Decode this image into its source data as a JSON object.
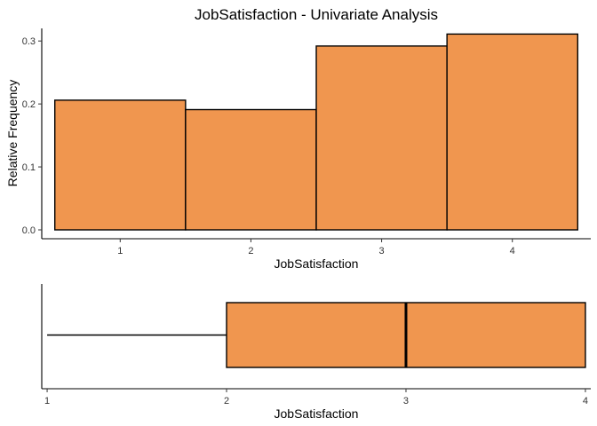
{
  "chart_data": [
    {
      "type": "bar",
      "title": "JobSatisfaction - Univariate Analysis",
      "xlabel": "JobSatisfaction",
      "ylabel": "Relative Frequency",
      "categories": [
        "1",
        "2",
        "3",
        "4"
      ],
      "values": [
        0.206,
        0.191,
        0.292,
        0.311
      ],
      "ylim": [
        0,
        0.32
      ],
      "yticks": [
        "0.0",
        "0.1",
        "0.2",
        "0.3"
      ],
      "grid": false,
      "fill_color": "#F0964F",
      "edge_color": "#000000"
    },
    {
      "type": "boxplot",
      "xlabel": "JobSatisfaction",
      "xticks": [
        "1",
        "2",
        "3",
        "4"
      ],
      "xlim": [
        0.97,
        4.03
      ],
      "min": 1,
      "q1": 2,
      "median": 3,
      "q3": 4,
      "max": 4,
      "grid": false,
      "fill_color": "#F0964F"
    }
  ]
}
